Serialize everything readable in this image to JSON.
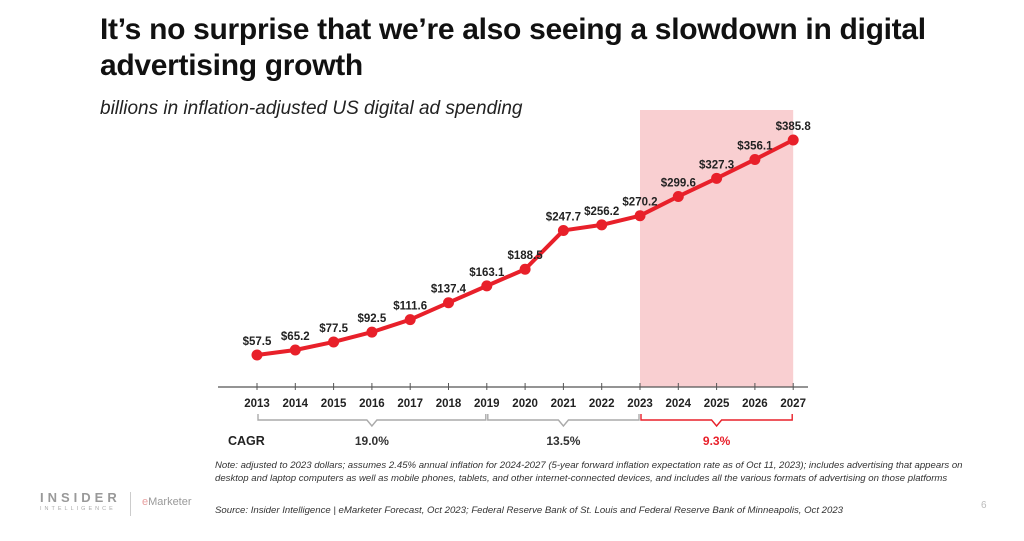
{
  "title": "It’s no surprise that we’re also seeing a slowdown in digital advertising growth",
  "subtitle": "billions in inflation-adjusted US digital ad spending",
  "chart_data": {
    "type": "line",
    "title": "It’s no surprise that we’re also seeing a slowdown in digital advertising growth",
    "subtitle": "billions in inflation-adjusted US digital ad spending",
    "xlabel": "",
    "ylabel": "",
    "categories": [
      "2013",
      "2014",
      "2015",
      "2016",
      "2017",
      "2018",
      "2019",
      "2020",
      "2021",
      "2022",
      "2023",
      "2024",
      "2025",
      "2026",
      "2027"
    ],
    "series": [
      {
        "name": "US digital ad spending (billions, inflation-adjusted)",
        "values": [
          57.5,
          65.2,
          77.5,
          92.5,
          111.6,
          137.4,
          163.1,
          188.5,
          247.7,
          256.2,
          270.2,
          299.6,
          327.3,
          356.1,
          385.8
        ],
        "labels": [
          "$57.5",
          "$65.2",
          "$77.5",
          "$92.5",
          "$111.6",
          "$137.4",
          "$163.1",
          "$188.5",
          "$247.7",
          "$256.2",
          "$270.2",
          "$299.6",
          "$327.3",
          "$356.1",
          "$385.8"
        ],
        "color": "#e8202a"
      }
    ],
    "ylim": [
      0,
      400
    ],
    "grid": false,
    "forecast_highlight": {
      "from": "2023",
      "to": "2027",
      "color": "#f9cfd1"
    },
    "cagr": {
      "label": "CAGR",
      "segments": [
        {
          "from": "2013",
          "to": "2019",
          "value": "19.0%",
          "color": "#aaaaaa"
        },
        {
          "from": "2019",
          "to": "2023",
          "value": "13.5%",
          "color": "#aaaaaa"
        },
        {
          "from": "2023",
          "to": "2027",
          "value": "9.3%",
          "color": "#e8202a"
        }
      ]
    }
  },
  "note": "Note: adjusted to 2023 dollars; assumes 2.45% annual inflation for 2024-2027 (5-year forward inflation expectation rate as of Oct 11, 2023); includes advertising that appears on desktop and laptop computers as well as mobile phones, tablets, and other internet-connected devices, and includes all the various formats of advertising on those platforms",
  "source": "Source: Insider Intelligence | eMarketer Forecast, Oct 2023; Federal Reserve Bank of St. Louis and Federal Reserve Bank of Minneapolis, Oct 2023",
  "footer": {
    "logo_line1": "INSIDER",
    "logo_line2": "INTELLIGENCE",
    "brand2": "Marketer",
    "brand2_prefix": "e",
    "page_number": "6"
  }
}
